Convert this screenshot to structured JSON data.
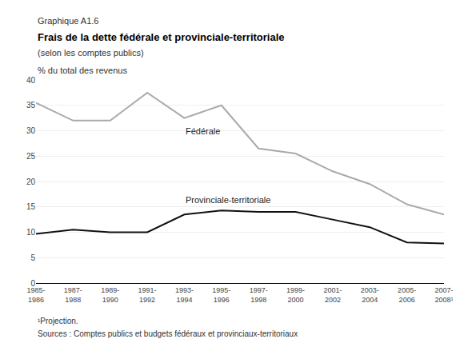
{
  "chart_data": {
    "type": "line",
    "title": "Frais de la dette fédérale et provinciale-territoriale",
    "subtitle": "(selon les comptes publics)",
    "ylabel": "% du total des revenus",
    "annotations": [
      "Graphique A1.6",
      "¹Projection.",
      "Sources : Comptes publics et budgets fédéraux et provinciaux-territoriaux"
    ],
    "categories": [
      "1985-\n1986",
      "1987-\n1988",
      "1989-\n1990",
      "1991-\n1992",
      "1993-\n1994",
      "1995-\n1996",
      "1997-\n1998",
      "1999-\n2000",
      "2001-\n2002",
      "2003-\n2004",
      "2005-\n2006",
      "2007-\n2008¹"
    ],
    "series": [
      {
        "name": "Fédérale",
        "color": "#aaaaaa",
        "values": [
          35.5,
          32.0,
          32.0,
          37.5,
          32.5,
          35.0,
          26.5,
          25.5,
          22.0,
          19.5,
          15.5,
          13.5
        ]
      },
      {
        "name": "Provinciale-territoriale",
        "color": "#111111",
        "values": [
          9.7,
          10.5,
          10.0,
          10.0,
          13.5,
          14.3,
          14.0,
          14.0,
          12.5,
          11.0,
          8.0,
          7.8
        ]
      }
    ],
    "ylim": [
      0,
      40
    ],
    "yticks": [
      0,
      5,
      10,
      15,
      20,
      25,
      30,
      35,
      40
    ],
    "grid": true
  }
}
